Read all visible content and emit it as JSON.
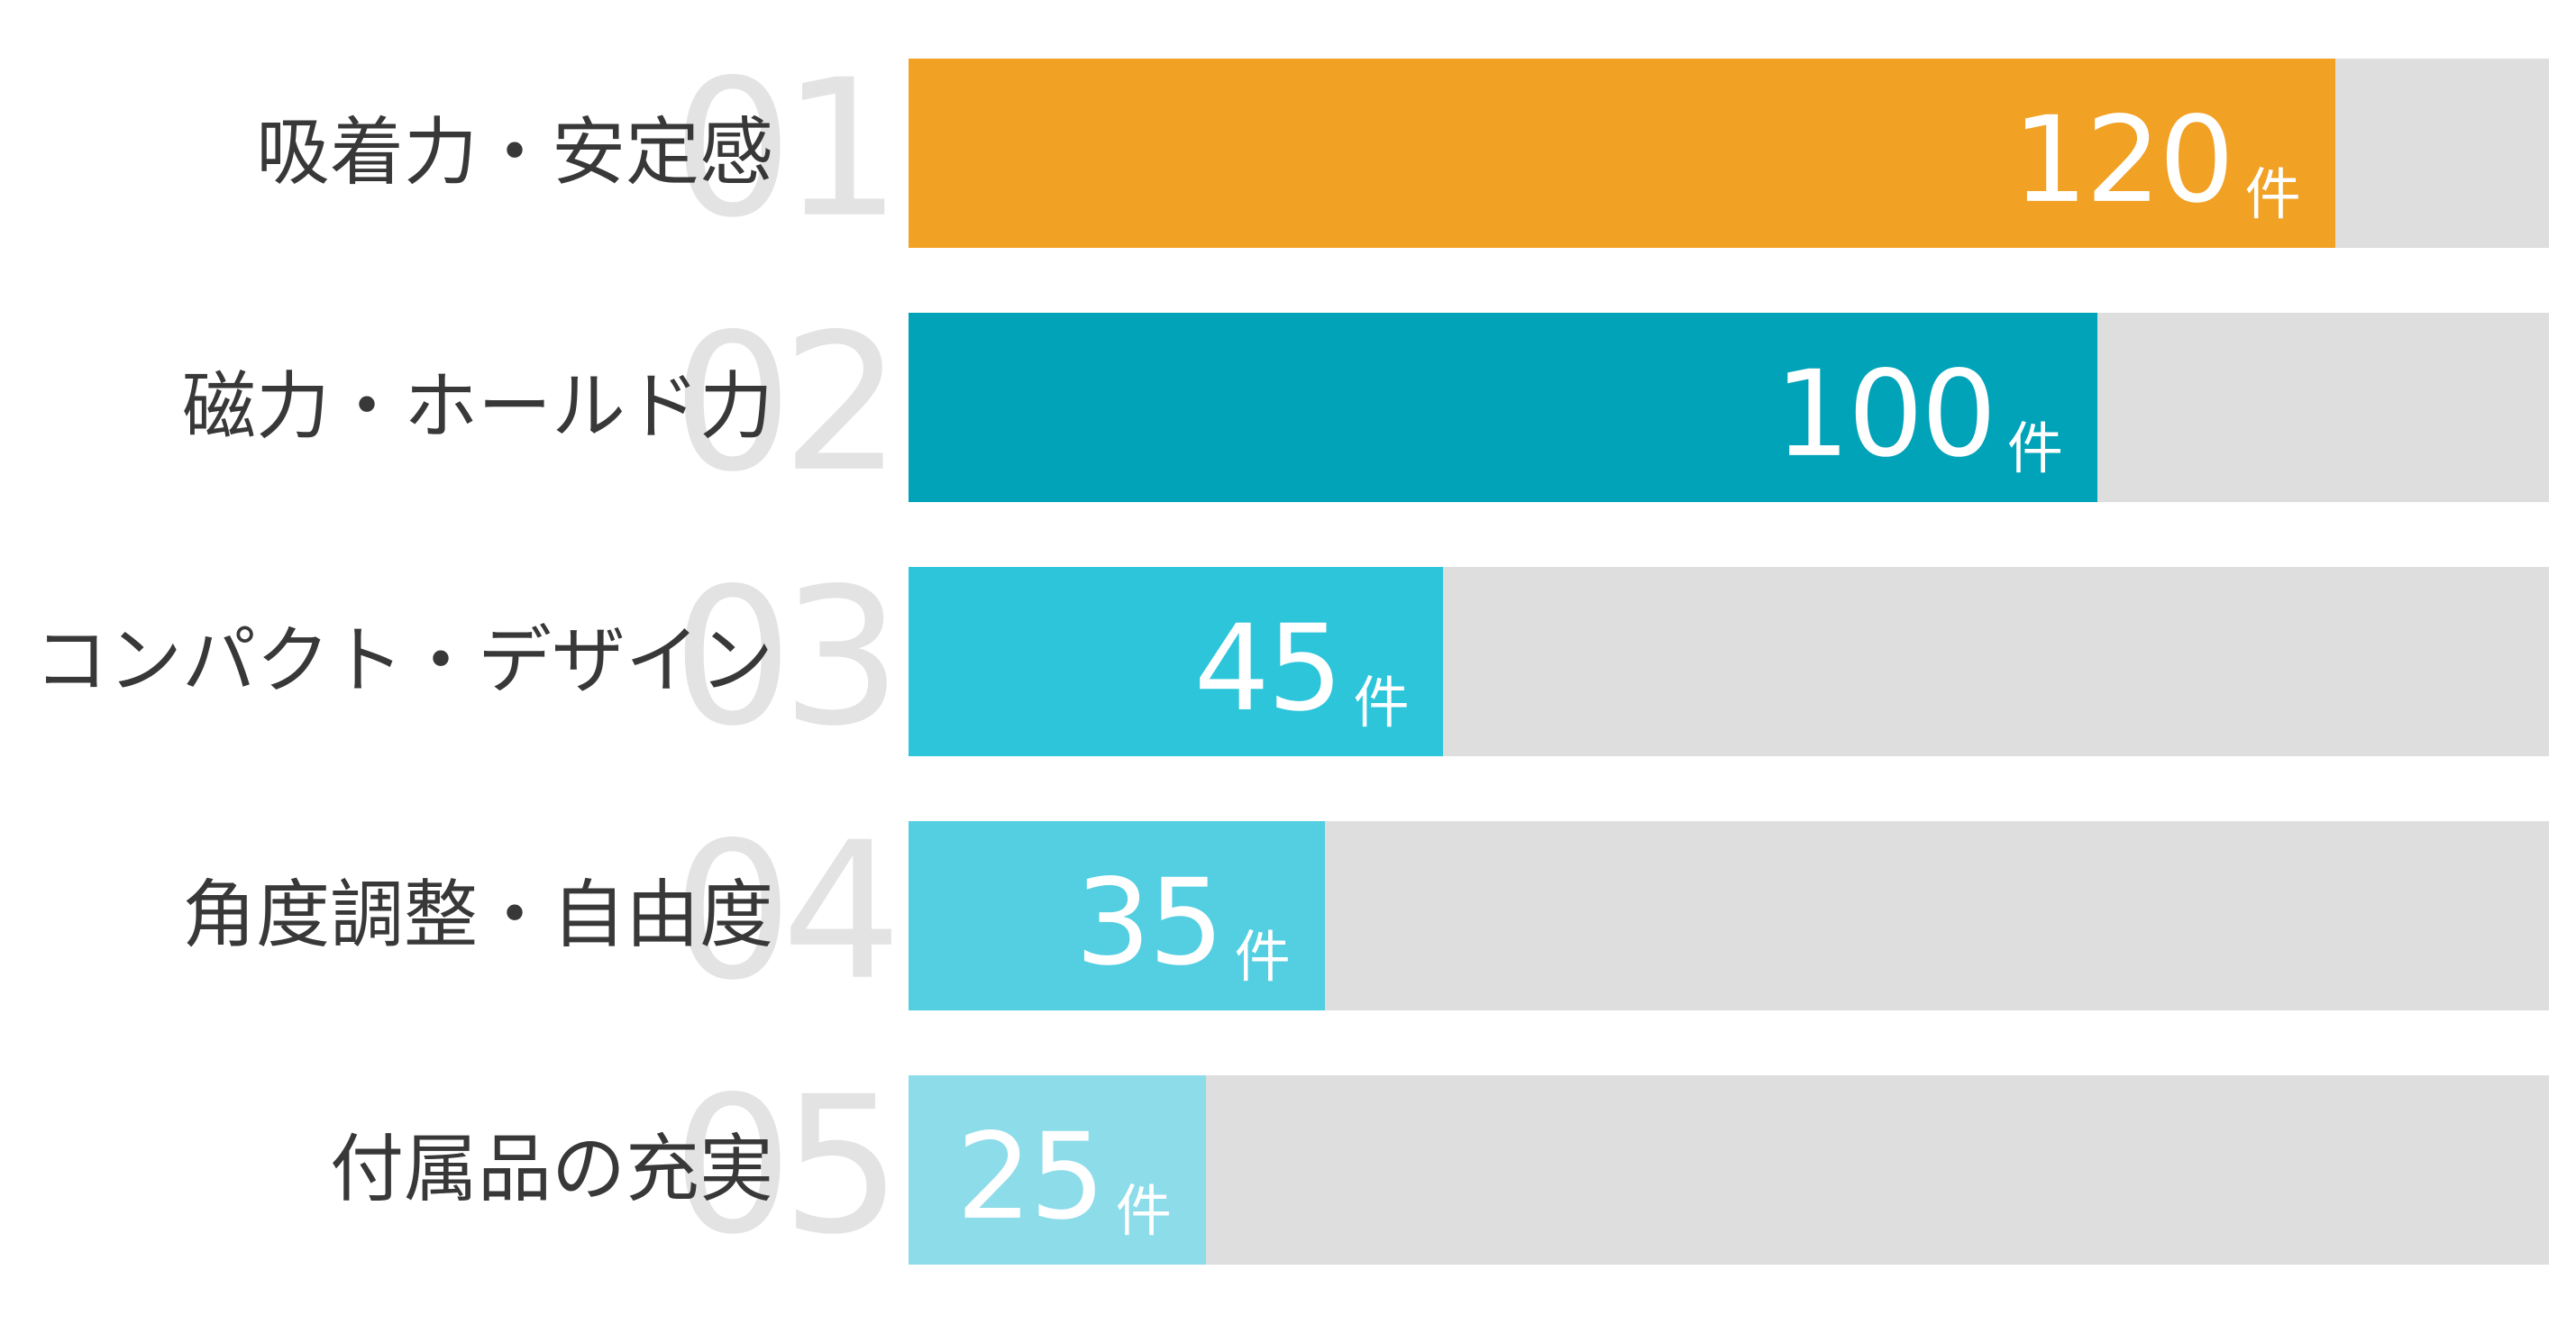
{
  "chart_data": {
    "type": "bar",
    "orientation": "horizontal",
    "unit": "件",
    "max_scale": 138,
    "grid": false,
    "legend": null,
    "categories": [
      "吸着力・安定感",
      "磁力・ホールド力",
      "コンパクト・デザイン",
      "角度調整・自由度",
      "付属品の充実"
    ],
    "values": [
      120,
      100,
      45,
      35,
      25
    ],
    "items": [
      {
        "rank": "01",
        "label": "吸着力・安定感",
        "value": 120,
        "value_label": "120件",
        "color": "#F1A124"
      },
      {
        "rank": "02",
        "label": "磁力・ホールド力",
        "value": 100,
        "value_label": "100件",
        "color": "#00A3B8"
      },
      {
        "rank": "03",
        "label": "コンパクト・デザイン",
        "value": 45,
        "value_label": "45件",
        "color": "#2CC5DA"
      },
      {
        "rank": "04",
        "label": "角度調整・自由度",
        "value": 35,
        "value_label": "35件",
        "color": "#53CFE1"
      },
      {
        "rank": "05",
        "label": "付属品の充実",
        "value": 25,
        "value_label": "25件",
        "color": "#8CDCE9"
      }
    ],
    "colors": {
      "background": "#FFFFFF",
      "track": "#DEDEDE",
      "rank_number": "#E3E3E3",
      "label": "#383838",
      "value_text": "#FFFFFF"
    }
  }
}
